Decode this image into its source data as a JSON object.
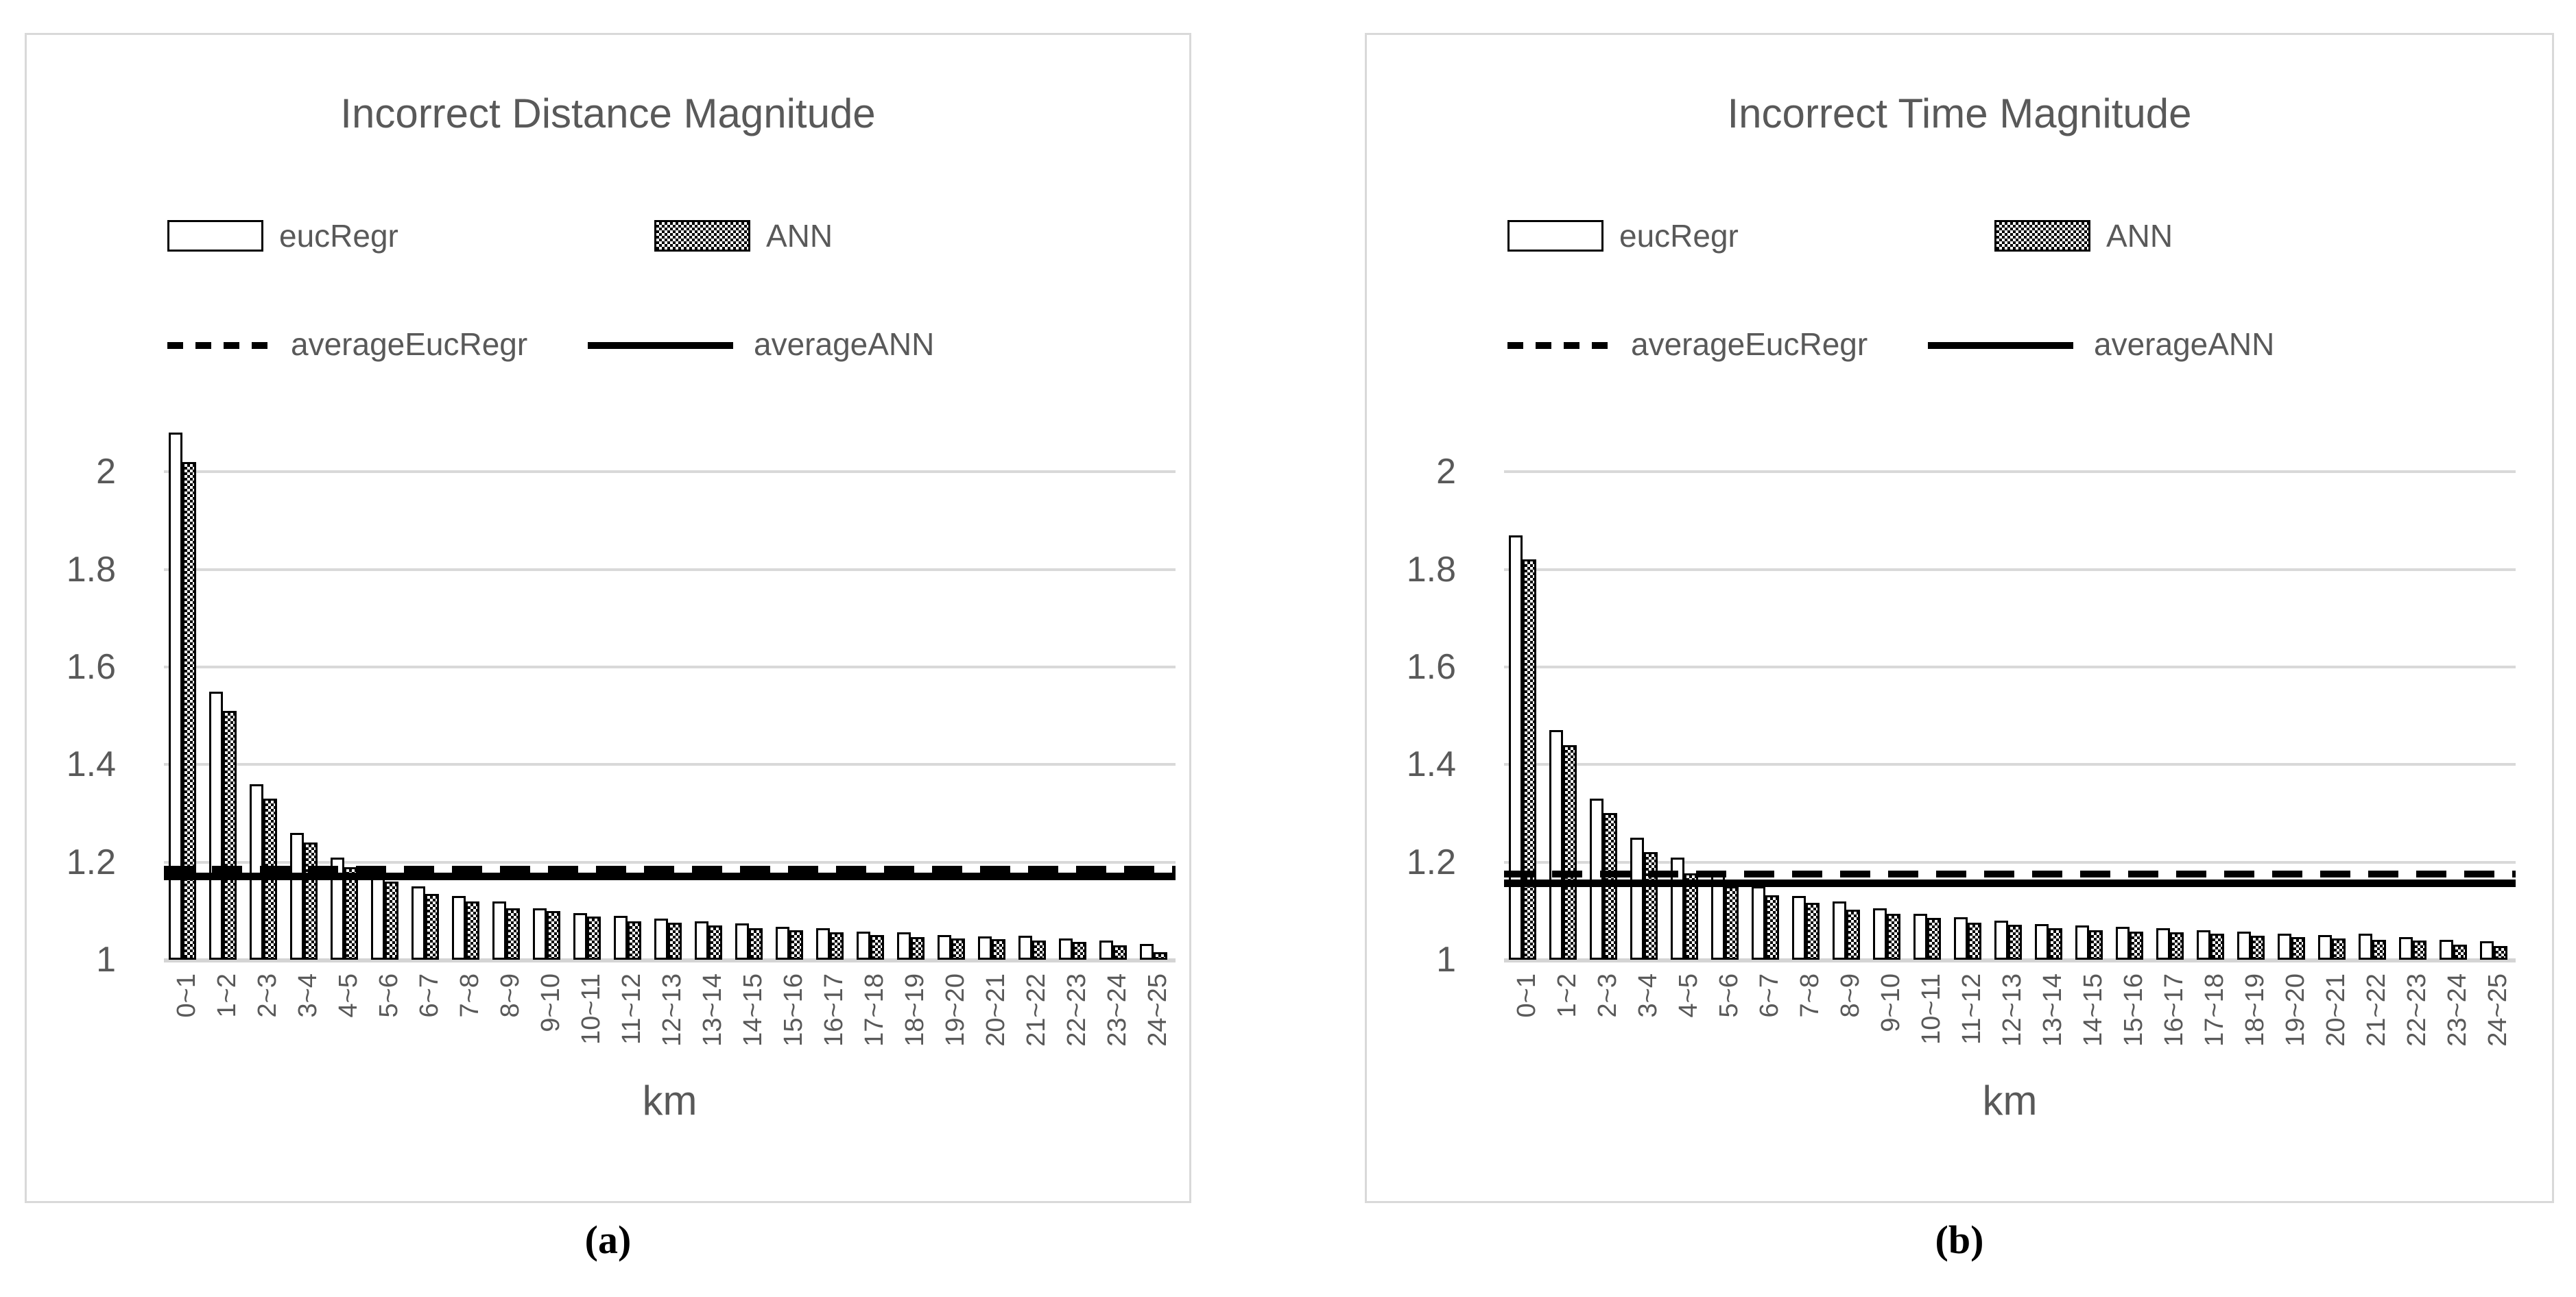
{
  "figure": {
    "background": "#ffffff"
  },
  "colors": {
    "text_gray": "#595959",
    "gridline": "#d9d9d9",
    "panel_border": "#d9d9d9",
    "bar_border": "#000000",
    "bar_fill_eucRegr": "#ffffff",
    "bar_fill_ANN": "checkerboard-black-white"
  },
  "legend": {
    "items": [
      {
        "label": "eucRegr",
        "swatch": "white-bar-swatch"
      },
      {
        "label": "ANN",
        "swatch": "checker-bar-swatch"
      },
      {
        "label": "averageEucRegr",
        "swatch": "dashed-line-swatch"
      },
      {
        "label": "averageANN",
        "swatch": "solid-line-swatch"
      }
    ]
  },
  "chart_data": [
    {
      "type": "bar",
      "title": "Incorrect Distance Magnitude",
      "caption": "(a)",
      "xlabel": "km",
      "ylabel": "",
      "ylim": [
        1,
        2.1
      ],
      "grid": true,
      "legend_position": "top",
      "y_ticks": [
        1,
        1.2,
        1.4,
        1.6,
        1.8,
        2
      ],
      "y_tick_labels": [
        "1",
        "1.2",
        "1.4",
        "1.6",
        "1.8",
        "2"
      ],
      "categories": [
        "0~1",
        "1~2",
        "2~3",
        "3~4",
        "4~5",
        "5~6",
        "6~7",
        "7~8",
        "8~9",
        "9~10",
        "10~11",
        "11~12",
        "12~13",
        "13~14",
        "14~15",
        "15~16",
        "16~17",
        "17~18",
        "18~19",
        "19~20",
        "20~21",
        "21~22",
        "22~23",
        "23~24",
        "24~25"
      ],
      "series": [
        {
          "name": "eucRegr",
          "values": [
            2.08,
            1.55,
            1.36,
            1.26,
            1.21,
            1.18,
            1.15,
            1.13,
            1.12,
            1.105,
            1.095,
            1.09,
            1.084,
            1.078,
            1.074,
            1.068,
            1.064,
            1.058,
            1.056,
            1.051,
            1.048,
            1.049,
            1.044,
            1.04,
            1.033
          ]
        },
        {
          "name": "ANN",
          "values": [
            2.02,
            1.51,
            1.33,
            1.24,
            1.19,
            1.16,
            1.135,
            1.12,
            1.106,
            1.1,
            1.089,
            1.079,
            1.076,
            1.07,
            1.065,
            1.06,
            1.056,
            1.051,
            1.047,
            1.044,
            1.042,
            1.04,
            1.037,
            1.029,
            1.015
          ]
        }
      ],
      "avg_lines": [
        {
          "name": "averageEucRegr",
          "style": "dashed",
          "value": 1.185
        },
        {
          "name": "averageANN",
          "style": "solid",
          "value": 1.17
        }
      ]
    },
    {
      "type": "bar",
      "title": "Incorrect Time Magnitude",
      "caption": "(b)",
      "xlabel": "km",
      "ylabel": "",
      "ylim": [
        1,
        2.1
      ],
      "grid": true,
      "legend_position": "top",
      "y_ticks": [
        1,
        1.2,
        1.4,
        1.6,
        1.8,
        2
      ],
      "y_tick_labels": [
        "1",
        "1.2",
        "1.4",
        "1.6",
        "1.8",
        "2"
      ],
      "categories": [
        "0~1",
        "1~2",
        "2~3",
        "3~4",
        "4~5",
        "5~6",
        "6~7",
        "7~8",
        "8~9",
        "9~10",
        "10~11",
        "11~12",
        "12~13",
        "13~14",
        "14~15",
        "15~16",
        "16~17",
        "17~18",
        "18~19",
        "19~20",
        "20~21",
        "21~22",
        "22~23",
        "23~24",
        "24~25"
      ],
      "series": [
        {
          "name": "eucRegr",
          "values": [
            1.87,
            1.47,
            1.33,
            1.25,
            1.21,
            1.18,
            1.15,
            1.131,
            1.12,
            1.106,
            1.094,
            1.087,
            1.08,
            1.073,
            1.07,
            1.067,
            1.064,
            1.06,
            1.057,
            1.054,
            1.051,
            1.054,
            1.047,
            1.041,
            1.038
          ]
        },
        {
          "name": "ANN",
          "values": [
            1.82,
            1.44,
            1.3,
            1.22,
            1.177,
            1.151,
            1.132,
            1.116,
            1.103,
            1.094,
            1.085,
            1.076,
            1.071,
            1.064,
            1.061,
            1.058,
            1.056,
            1.053,
            1.049,
            1.047,
            1.043,
            1.041,
            1.039,
            1.031,
            1.028
          ]
        }
      ],
      "avg_lines": [
        {
          "name": "averageEucRegr",
          "style": "dashed",
          "value": 1.175
        },
        {
          "name": "averageANN",
          "style": "solid",
          "value": 1.156
        }
      ]
    }
  ]
}
